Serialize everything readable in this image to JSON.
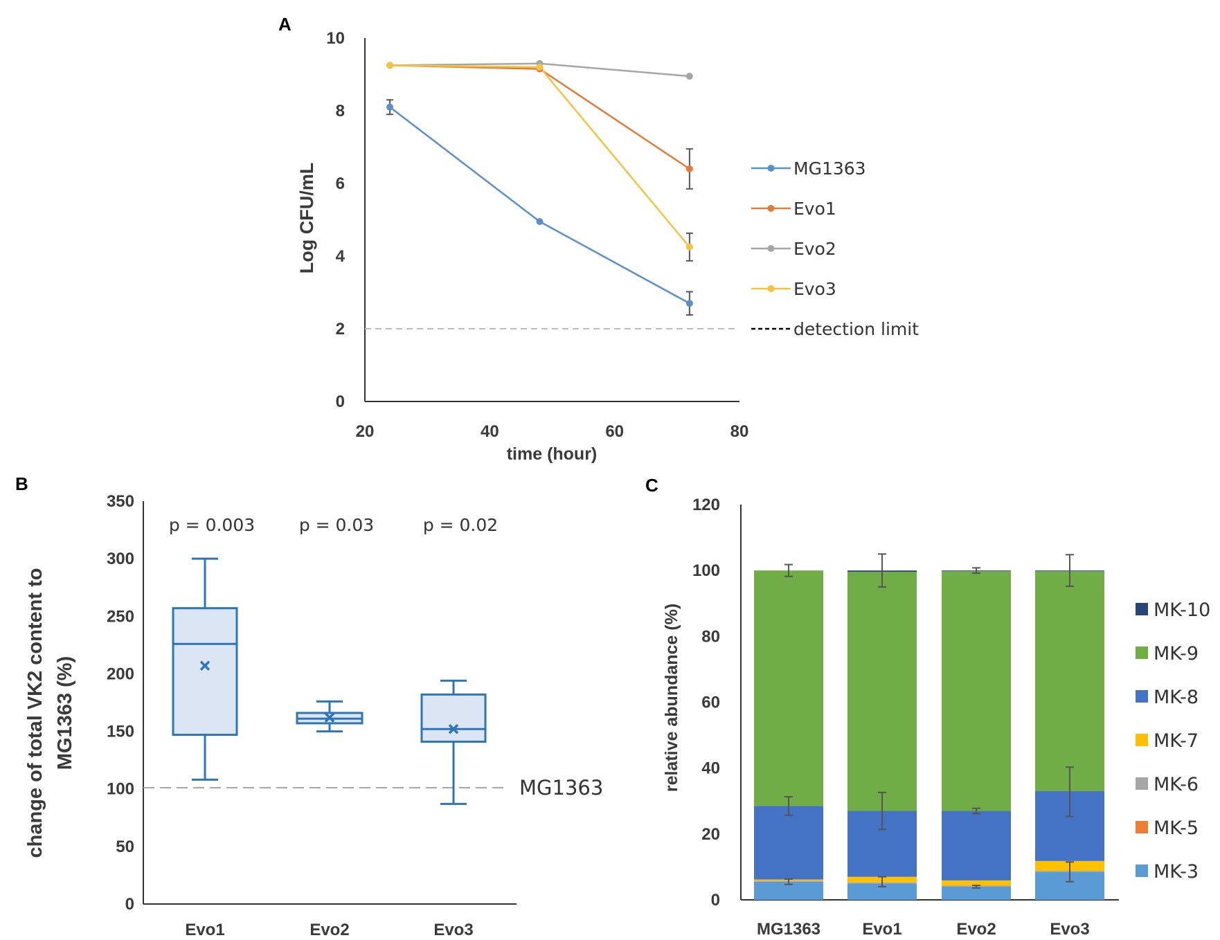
{
  "chart_data": [
    {
      "panel": "A",
      "type": "line",
      "xlabel": "time (hour)",
      "ylabel": "Log CFU/mL",
      "xlim": [
        20,
        80
      ],
      "ylim": [
        0,
        10
      ],
      "xticks": [
        20,
        40,
        60,
        80
      ],
      "yticks": [
        0,
        2,
        4,
        6,
        8,
        10
      ],
      "x": [
        24,
        48,
        72
      ],
      "series": [
        {
          "name": "MG1363",
          "color": "#5b8fcb",
          "values": [
            8.1,
            4.95,
            2.7
          ],
          "errors": [
            0.2,
            0.05,
            0.32
          ]
        },
        {
          "name": "Evo1",
          "color": "#e07b39",
          "values": [
            9.25,
            9.15,
            6.4
          ],
          "errors": [
            0.05,
            0.05,
            0.55
          ]
        },
        {
          "name": "Evo2",
          "color": "#a6a6a6",
          "values": [
            9.25,
            9.3,
            8.95
          ],
          "errors": [
            0.04,
            0.04,
            0.04
          ]
        },
        {
          "name": "Evo3",
          "color": "#f5c242",
          "values": [
            9.25,
            9.2,
            4.25
          ],
          "errors": [
            0.05,
            0.06,
            0.38
          ]
        }
      ],
      "reference_line": {
        "name": "detection limit",
        "value": 2
      }
    },
    {
      "panel": "B",
      "type": "box",
      "ylabel": "change of total VK2 content to MG1363 (%)",
      "ylabel_lines": [
        "change of total VK2 content to",
        "MG1363 (%)"
      ],
      "ylim": [
        0,
        350
      ],
      "yticks": [
        0,
        50,
        100,
        150,
        200,
        250,
        300,
        350
      ],
      "categories": [
        "Evo1",
        "Evo2",
        "Evo3"
      ],
      "boxes": [
        {
          "min": 108,
          "q1": 147,
          "median": 226,
          "q3": 257,
          "max": 300,
          "mean": 207,
          "p": "p = 0.003"
        },
        {
          "min": 150,
          "q1": 157,
          "median": 161,
          "q3": 166,
          "max": 176,
          "mean": 162,
          "p": "p = 0.03"
        },
        {
          "min": 87,
          "q1": 141,
          "median": 152,
          "q3": 182,
          "max": 194,
          "mean": 152,
          "p": "p = 0.02"
        }
      ],
      "reference_line": {
        "name": "MG1363",
        "value": 101
      }
    },
    {
      "panel": "C",
      "type": "stacked_bar",
      "ylabel": "relative abundance (%)",
      "ylim": [
        0,
        120
      ],
      "yticks": [
        0,
        20,
        40,
        60,
        80,
        100,
        120
      ],
      "categories": [
        "MG1363",
        "Evo1",
        "Evo2",
        "Evo3"
      ],
      "series": [
        {
          "name": "MK-3",
          "color": "#5b9bd5",
          "values": [
            5.5,
            5.0,
            4.0,
            8.5
          ]
        },
        {
          "name": "MK-5",
          "color": "#ed7d31",
          "values": [
            0.0,
            0.0,
            0.0,
            0.0
          ]
        },
        {
          "name": "MK-6",
          "color": "#a5a5a5",
          "values": [
            0.3,
            0.3,
            0.3,
            0.3
          ]
        },
        {
          "name": "MK-7",
          "color": "#ffc000",
          "values": [
            0.4,
            1.7,
            1.6,
            3.0
          ]
        },
        {
          "name": "MK-8",
          "color": "#4472c4",
          "values": [
            22.3,
            20.0,
            21.1,
            21.2
          ]
        },
        {
          "name": "MK-9",
          "color": "#70ad47",
          "values": [
            71.5,
            72.6,
            72.8,
            66.8
          ]
        },
        {
          "name": "MK-10",
          "color": "#264478",
          "values": [
            0.0,
            0.4,
            0.2,
            0.2
          ]
        }
      ],
      "error_bars": [
        {
          "at": [
            100,
            28.5,
            5.5
          ],
          "err": [
            1.8,
            2.8,
            0.8
          ]
        },
        {
          "at": [
            100,
            27.0,
            5.5
          ],
          "err": [
            5.0,
            5.6,
            1.5
          ]
        },
        {
          "at": [
            100,
            27.0,
            4.0
          ],
          "err": [
            0.8,
            0.8,
            0.4
          ]
        },
        {
          "at": [
            100,
            32.8,
            8.5
          ],
          "err": [
            4.8,
            7.5,
            3.0
          ]
        }
      ]
    }
  ],
  "panels": {
    "a": "A",
    "b": "B",
    "c": "C"
  }
}
